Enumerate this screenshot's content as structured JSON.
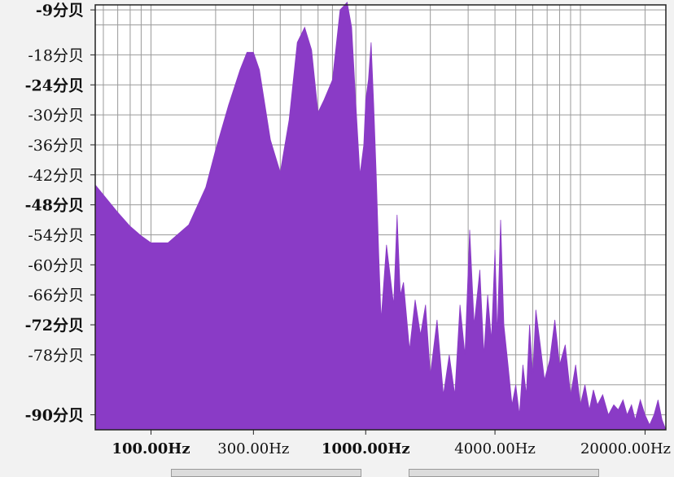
{
  "chart_data": {
    "type": "area",
    "title": "",
    "xlabel": "",
    "ylabel": "",
    "x_scale": "log",
    "xlim": [
      55,
      25000
    ],
    "ylim": [
      -93,
      -8
    ],
    "grid": true,
    "fill_color": "#8a3bc6",
    "grid_color": "#9a9a9a",
    "background": "#ffffff",
    "y_ticks": [
      {
        "value": -9,
        "label": "-9分贝",
        "bold": true
      },
      {
        "value": -18,
        "label": "-18分贝",
        "bold": false
      },
      {
        "value": -24,
        "label": "-24分贝",
        "bold": true
      },
      {
        "value": -30,
        "label": "-30分贝",
        "bold": false
      },
      {
        "value": -36,
        "label": "-36分贝",
        "bold": false
      },
      {
        "value": -42,
        "label": "-42分贝",
        "bold": false
      },
      {
        "value": -48,
        "label": "-48分贝",
        "bold": true
      },
      {
        "value": -54,
        "label": "-54分贝",
        "bold": false
      },
      {
        "value": -60,
        "label": "-60分贝",
        "bold": false
      },
      {
        "value": -66,
        "label": "-66分贝",
        "bold": false
      },
      {
        "value": -72,
        "label": "-72分贝",
        "bold": true
      },
      {
        "value": -78,
        "label": "-78分贝",
        "bold": false
      },
      {
        "value": -90,
        "label": "-90分贝",
        "bold": true
      }
    ],
    "x_ticks": [
      {
        "value": 100,
        "label": "100.00Hz",
        "bold": true
      },
      {
        "value": 300,
        "label": "300.00Hz",
        "bold": false
      },
      {
        "value": 1000,
        "label": "1000.00Hz",
        "bold": true
      },
      {
        "value": 4000,
        "label": "4000.00Hz",
        "bold": false
      },
      {
        "value": 20000,
        "label": "20000.00Hz",
        "bold": false
      }
    ],
    "x_gridlines": [
      60,
      70,
      80,
      90,
      100,
      200,
      300,
      400,
      500,
      600,
      700,
      800,
      900,
      1000,
      2000,
      3000,
      4000,
      5000,
      6000,
      7000,
      8000,
      9000,
      10000,
      20000
    ],
    "y_gridlines": [
      -9,
      -12,
      -18,
      -24,
      -30,
      -36,
      -42,
      -48,
      -54,
      -60,
      -66,
      -72,
      -78,
      -84,
      -90
    ],
    "spectrum": {
      "x": [
        55,
        60,
        70,
        80,
        90,
        100,
        120,
        150,
        180,
        200,
        230,
        260,
        280,
        300,
        320,
        360,
        400,
        440,
        480,
        520,
        560,
        600,
        640,
        700,
        760,
        820,
        860,
        900,
        940,
        980,
        1000,
        1030,
        1060,
        1090,
        1120,
        1150,
        1180,
        1250,
        1350,
        1400,
        1450,
        1500,
        1600,
        1700,
        1800,
        1900,
        2000,
        2150,
        2300,
        2450,
        2600,
        2750,
        2900,
        3050,
        3200,
        3400,
        3550,
        3700,
        3850,
        4000,
        4100,
        4250,
        4400,
        4600,
        4800,
        5000,
        5200,
        5400,
        5600,
        5800,
        6000,
        6200,
        6500,
        6800,
        7200,
        7600,
        8000,
        8500,
        9000,
        9500,
        10000,
        10500,
        11000,
        11500,
        12000,
        12700,
        13500,
        14300,
        15000,
        15800,
        16500,
        17300,
        18000,
        19000,
        20000,
        21000,
        22000,
        23000,
        24000,
        25000
      ],
      "y": [
        -44,
        -46,
        -49.5,
        -52.3,
        -54.2,
        -55.6,
        -55.6,
        -52,
        -44.5,
        -37,
        -28,
        -21,
        -17.5,
        -17.5,
        -21,
        -35,
        -41.5,
        -31,
        -15.5,
        -12.5,
        -17,
        -29.5,
        -27,
        -23,
        -9,
        -7.5,
        -12.5,
        -28,
        -42,
        -36,
        -27,
        -23,
        -15.5,
        -28,
        -42,
        -58,
        -71,
        -56,
        -68,
        -50,
        -66,
        -63.5,
        -77,
        -67,
        -74,
        -68,
        -82,
        -71,
        -86,
        -78,
        -86,
        -68,
        -78,
        -53,
        -72,
        -61,
        -78,
        -66,
        -75,
        -57,
        -74,
        -51,
        -72,
        -80,
        -88,
        -84,
        -90,
        -80,
        -86,
        -72,
        -82,
        -69,
        -76,
        -83,
        -79,
        -71,
        -80,
        -76,
        -86,
        -80,
        -88,
        -84,
        -89,
        -85,
        -88,
        -86,
        -90,
        -88,
        -89,
        -87,
        -90,
        -88,
        -91,
        -87,
        -90,
        -92,
        -90,
        -87,
        -91,
        -93
      ]
    }
  },
  "bottom_bars": [
    {
      "name": "zoom-control-left"
    },
    {
      "name": "zoom-control-right"
    }
  ]
}
